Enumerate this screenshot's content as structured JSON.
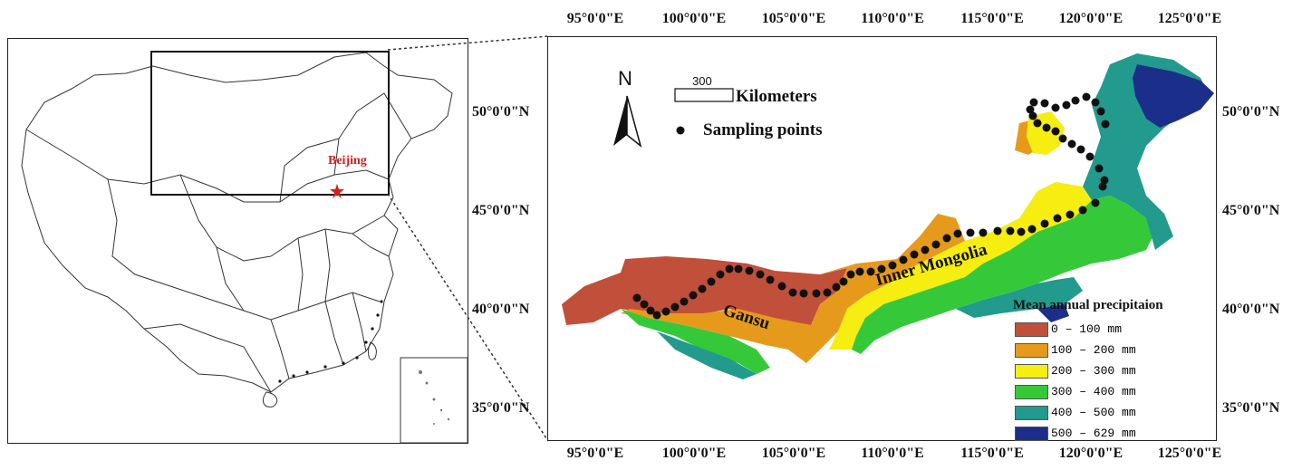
{
  "map": {
    "top_ticks": [
      "95°0'0\"E",
      "100°0'0\"E",
      "105°0'0\"E",
      "110°0'0\"E",
      "115°0'0\"E",
      "120°0'0\"E",
      "125°0'0\"E"
    ],
    "bottom_ticks": [
      "95°0'0\"E",
      "100°0'0\"E",
      "105°0'0\"E",
      "110°0'0\"E",
      "115°0'0\"E",
      "120°0'0\"E",
      "125°0'0\"E"
    ],
    "left_ticks": [
      "50°0'0\"N",
      "45°0'0\"N",
      "40°0'0\"N",
      "35°0'0\"N"
    ],
    "right_ticks": [
      "50°0'0\"N",
      "45°0'0\"N",
      "40°0'0\"N",
      "35°0'0\"N"
    ],
    "north_label": "N",
    "scale_value": "300",
    "scale_unit": "Kilometers",
    "sampling_label": "Sampling points",
    "region_gansu": "Gansu",
    "region_inner_mongolia": "Inner Mongolia",
    "inset_city": "Beijing",
    "legend": {
      "title": "Mean annual precipitaion",
      "items": [
        {
          "label": "0 – 100 mm",
          "color": "#c0503a"
        },
        {
          "label": "100 – 200 mm",
          "color": "#e69a1c"
        },
        {
          "label": "200 – 300 mm",
          "color": "#f5ee10"
        },
        {
          "label": "300 – 400 mm",
          "color": "#35c93a"
        },
        {
          "label": "400 – 500 mm",
          "color": "#239a8e"
        },
        {
          "label": "500 – 629 mm",
          "color": "#1b2f8a"
        }
      ]
    }
  }
}
